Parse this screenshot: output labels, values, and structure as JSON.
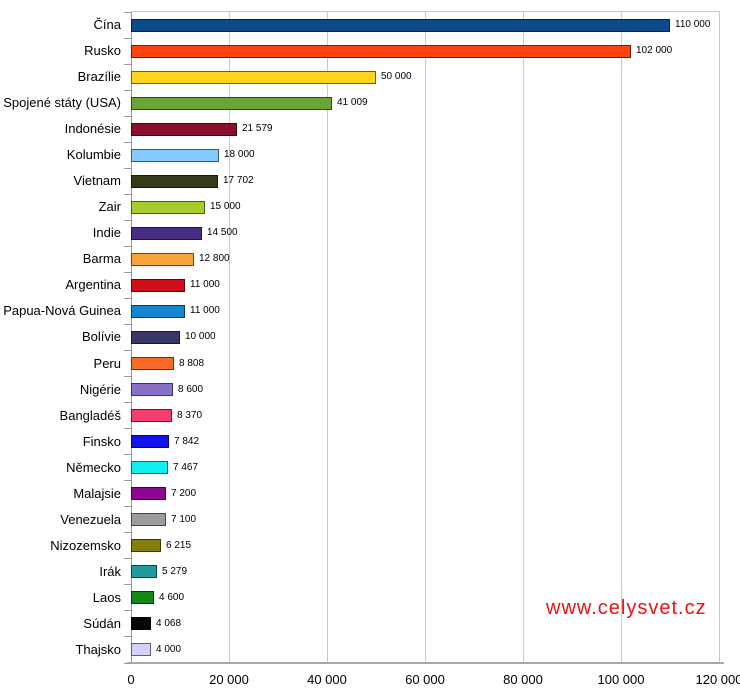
{
  "watermark": {
    "text": "www.celysvet.cz",
    "color": "#ee1111"
  },
  "axis_color": "#9a9a9a",
  "grid_color": "#c9c9c9",
  "chart_data": {
    "type": "bar",
    "orientation": "horizontal",
    "title": "",
    "xlabel": "",
    "ylabel": "",
    "xlim": [
      0,
      120000
    ],
    "grid": "vertical",
    "legend": "none",
    "x_ticks": [
      0,
      20000,
      40000,
      60000,
      80000,
      100000,
      120000
    ],
    "x_tick_labels": [
      "0",
      "20 000",
      "40 000",
      "60 000",
      "80 000",
      "100 000",
      "120 000"
    ],
    "categories": [
      "Čína",
      "Rusko",
      "Brazílie",
      "Spojené státy (USA)",
      "Indonésie",
      "Kolumbie",
      "Vietnam",
      "Zair",
      "Indie",
      "Barma",
      "Argentina",
      "Papua-Nová Guinea",
      "Bolívie",
      "Peru",
      "Nigérie",
      "Bangladéš",
      "Finsko",
      "Německo",
      "Malajsie",
      "Venezuela",
      "Nizozemsko",
      "Irák",
      "Laos",
      "Súdán",
      "Thajsko"
    ],
    "values": [
      110000,
      102000,
      50000,
      41009,
      21579,
      18000,
      17702,
      15000,
      14500,
      12800,
      11000,
      11000,
      10000,
      8808,
      8600,
      8370,
      7842,
      7467,
      7200,
      7100,
      6215,
      5279,
      4600,
      4068,
      4000
    ],
    "value_labels": [
      "110 000",
      "102 000",
      "50 000",
      "41 009",
      "21 579",
      "18 000",
      "17 702",
      "15 000",
      "14 500",
      "12 800",
      "11 000",
      "11 000",
      "10 000",
      "8 808",
      "8 600",
      "8 370",
      "7 842",
      "7 467",
      "7 200",
      "7 100",
      "6 215",
      "5 279",
      "4 600",
      "4 068",
      "4 000"
    ],
    "colors": [
      "#0d4a8c",
      "#ff420e",
      "#ffd320",
      "#69a434",
      "#8c0f2e",
      "#83caff",
      "#36391a",
      "#a7cc2c",
      "#492d85",
      "#f7a23b",
      "#ce0e18",
      "#1286ce",
      "#383767",
      "#f86a26",
      "#8870c6",
      "#f43e6c",
      "#1212ee",
      "#10efef",
      "#8d0794",
      "#9c9c9c",
      "#847e0c",
      "#1f9aa0",
      "#168716",
      "#060606",
      "#d3d3f7"
    ]
  }
}
